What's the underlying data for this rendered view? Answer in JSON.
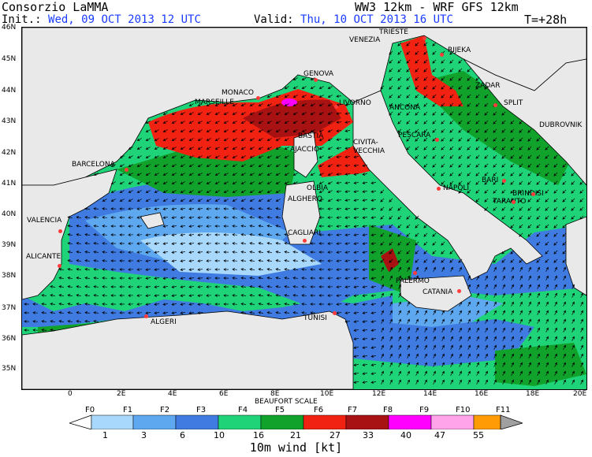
{
  "header": {
    "org": "Consorzio LaMMA",
    "model": "WW3 12km - WRF GFS 12km",
    "init_label": "Init.:",
    "init_value": "Wed, 09 OCT 2013   12 UTC",
    "valid_label": "Valid:",
    "valid_value": "Thu, 10 OCT 2013   16 UTC",
    "lead": "T=+28h"
  },
  "axes": {
    "lat_labels": [
      "46N",
      "45N",
      "44N",
      "43N",
      "42N",
      "41N",
      "40N",
      "39N",
      "38N",
      "37N",
      "36N",
      "35N"
    ],
    "lon_labels": [
      "0",
      "2E",
      "4E",
      "6E",
      "8E",
      "10E",
      "12E",
      "14E",
      "16E",
      "18E",
      "20E"
    ]
  },
  "cities": [
    {
      "name": "TRIESTE"
    },
    {
      "name": "VENEZIA"
    },
    {
      "name": "RIJEKA"
    },
    {
      "name": "GENOVA"
    },
    {
      "name": "MONACO"
    },
    {
      "name": "MARSEILLE"
    },
    {
      "name": "LIVORNO"
    },
    {
      "name": "ANCONA"
    },
    {
      "name": "ZADAR"
    },
    {
      "name": "SPLIT"
    },
    {
      "name": "DUBROVNIK"
    },
    {
      "name": "BASTIA"
    },
    {
      "name": "AJACCIO"
    },
    {
      "name": "PESCARA"
    },
    {
      "name": "CIVITA-"
    },
    {
      "name": "VECCHIA"
    },
    {
      "name": "BARCELONA"
    },
    {
      "name": "OLBIA"
    },
    {
      "name": "ALGHERO"
    },
    {
      "name": "NAPOLI"
    },
    {
      "name": "BARI"
    },
    {
      "name": "BRINDISI"
    },
    {
      "name": "TARANTO"
    },
    {
      "name": "VALENCIA"
    },
    {
      "name": "CAGLIARI"
    },
    {
      "name": "ALICANTE"
    },
    {
      "name": "PALERMO"
    },
    {
      "name": "CATANIA"
    },
    {
      "name": "TUNISI"
    },
    {
      "name": "ALGERI"
    }
  ],
  "legend": {
    "title": "BEAUFORT SCALE",
    "beaufort": [
      "F0",
      "F1",
      "F2",
      "F3",
      "F4",
      "F5",
      "F6",
      "F7",
      "F8",
      "F9",
      "F10",
      "F11"
    ],
    "knots": [
      "1",
      "3",
      "6",
      "10",
      "16",
      "21",
      "27",
      "33",
      "40",
      "47",
      "55"
    ],
    "colors": [
      "#a8d8fb",
      "#5ea8f0",
      "#3f7be0",
      "#1fd478",
      "#11a22c",
      "#f22212",
      "#a81212",
      "#ff00ff",
      "#ffa3ea",
      "#ff9c05"
    ],
    "end_left_color": "#ffffff",
    "end_right_color": "#a0a0a0",
    "caption": "10m wind [kt]"
  },
  "colors": {
    "land": "#e9e9e9",
    "sea_calm": "#a8d8fb",
    "sea_f2": "#5ea8f0",
    "sea_f3": "#3f7be0",
    "sea_f4": "#1fd478",
    "sea_f5": "#11a22c",
    "sea_f6": "#f22212",
    "sea_f7": "#a81212",
    "sea_f8": "#ff00ff"
  }
}
